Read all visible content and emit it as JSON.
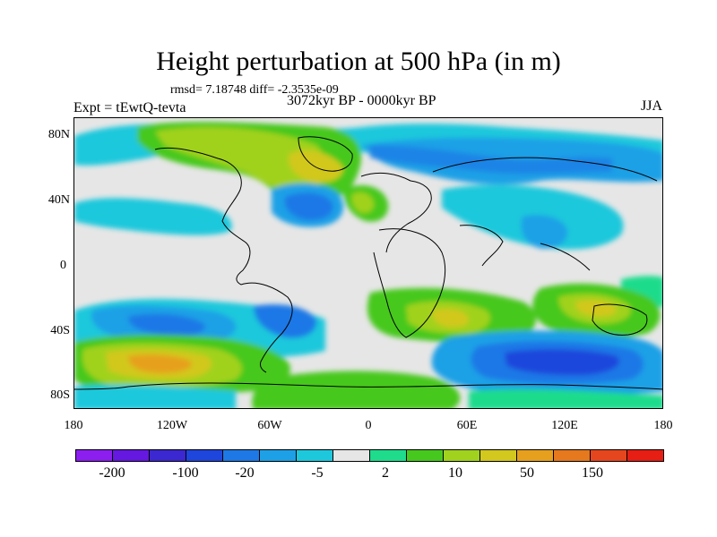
{
  "title": "Height perturbation at 500 hPa (in m)",
  "stats": "rmsd= 7.18748 diff= -2.3535e-09",
  "experiment": "Expt = tEwtQ-tevta",
  "period": "3072kyr BP - 0000kyr BP",
  "season": "JJA",
  "map": {
    "lat_labels": [
      "80N",
      "40N",
      "0",
      "40S",
      "80S"
    ],
    "lon_labels": [
      "180",
      "120W",
      "60W",
      "0",
      "60E",
      "120E",
      "180"
    ]
  },
  "colorbar": {
    "colors": [
      "#8c1ef0",
      "#6418e0",
      "#3c28d0",
      "#1e46dc",
      "#1e78e6",
      "#1ea0e6",
      "#1ec8dc",
      "#e6e6e6",
      "#1edc8c",
      "#46c81e",
      "#a0d21e",
      "#d2c81e",
      "#e6a01e",
      "#e6781e",
      "#e6461e",
      "#e61e14"
    ],
    "labels": [
      "-200",
      "-100",
      "-20",
      "-5",
      "2",
      "10",
      "50",
      "150"
    ]
  }
}
